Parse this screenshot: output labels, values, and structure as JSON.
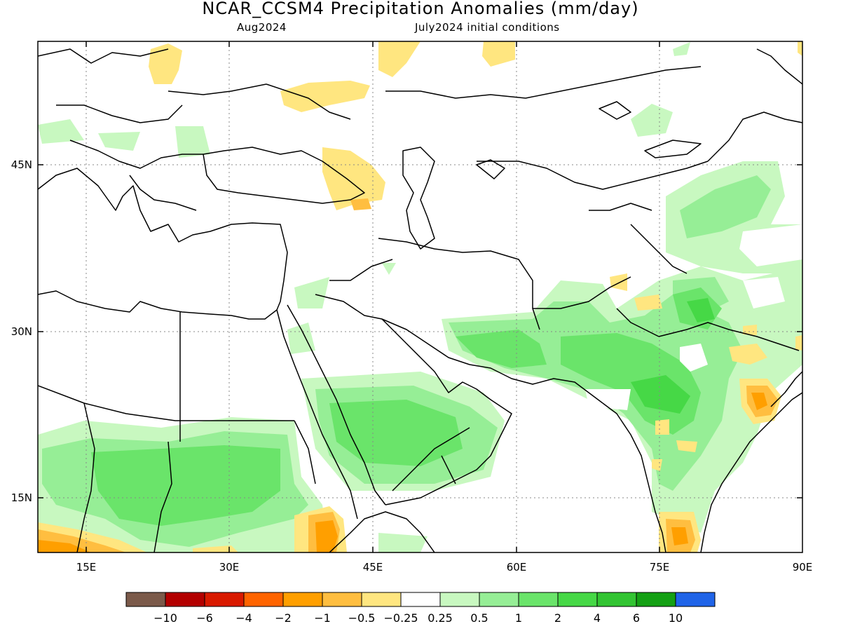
{
  "title": "NCAR_CCSM4 Precipitation Anomalies (mm/day)",
  "subtitle_left": "Aug2024",
  "subtitle_right": "July2024 initial conditions",
  "latitude_labels": [
    "45N",
    "30N",
    "15N"
  ],
  "longitude_labels": [
    "15E",
    "30E",
    "45E",
    "60E",
    "75E",
    "90E"
  ],
  "colorbar": {
    "colors": [
      "#7b5a4a",
      "#b30000",
      "#d91a00",
      "#ff6400",
      "#ff9f00",
      "#ffbe40",
      "#ffe680",
      "#ffffff",
      "#c8f8c0",
      "#96ee96",
      "#6ae46a",
      "#46d846",
      "#32c432",
      "#14a014",
      "#2064e8"
    ],
    "labels": [
      "−10",
      "−6",
      "−4",
      "−2",
      "−1",
      "−0.5",
      "−0.25",
      "0.25",
      "0.5",
      "1",
      "2",
      "4",
      "6",
      "10"
    ]
  }
}
